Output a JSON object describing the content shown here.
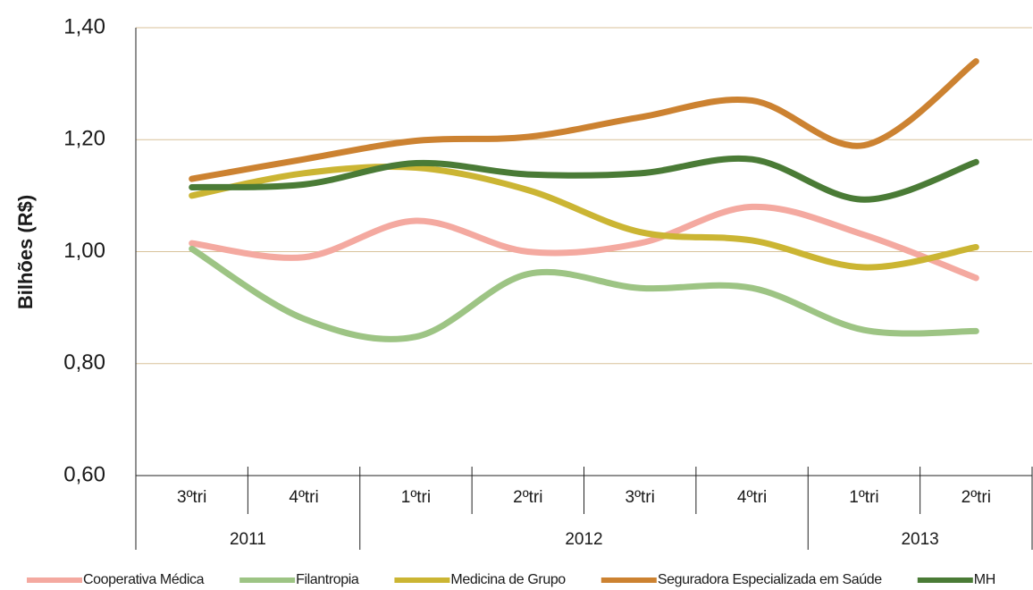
{
  "chart_data": {
    "type": "line",
    "y_label": "Bilhões (R$)",
    "categories": [
      "3ºtri",
      "4ºtri",
      "1ºtri",
      "2ºtri",
      "3ºtri",
      "4ºtri",
      "1ºtri",
      "2ºtri"
    ],
    "category_groups": [
      {
        "label": "2011",
        "count": 2
      },
      {
        "label": "2012",
        "count": 4
      },
      {
        "label": "2013",
        "count": 2
      }
    ],
    "ylim": [
      0.6,
      1.4
    ],
    "yticks": [
      {
        "value": 0.6,
        "label": "0,60"
      },
      {
        "value": 0.8,
        "label": "0,80"
      },
      {
        "value": 1.0,
        "label": "1,00"
      },
      {
        "value": 1.2,
        "label": "1,20"
      },
      {
        "value": 1.4,
        "label": "1,40"
      }
    ],
    "grid": true,
    "smooth": true,
    "legend": "bottom",
    "series": [
      {
        "name": "Cooperativa Médica",
        "color": "#f4a9a0",
        "values": [
          1.015,
          0.99,
          1.055,
          1.0,
          1.015,
          1.08,
          1.03,
          0.953
        ]
      },
      {
        "name": "Filantropia",
        "color": "#9dc484",
        "values": [
          1.005,
          0.88,
          0.848,
          0.96,
          0.935,
          0.935,
          0.86,
          0.858
        ]
      },
      {
        "name": "Medicina de Grupo",
        "color": "#cbb533",
        "values": [
          1.1,
          1.14,
          1.15,
          1.11,
          1.035,
          1.02,
          0.972,
          1.008
        ]
      },
      {
        "name": "Seguradora Especializada em Saúde",
        "color": "#cc8231",
        "values": [
          1.13,
          1.165,
          1.198,
          1.205,
          1.24,
          1.27,
          1.19,
          1.34
        ]
      },
      {
        "name": "MH",
        "color": "#4a7b36",
        "values": [
          1.115,
          1.12,
          1.158,
          1.138,
          1.14,
          1.165,
          1.093,
          1.16
        ]
      }
    ]
  }
}
